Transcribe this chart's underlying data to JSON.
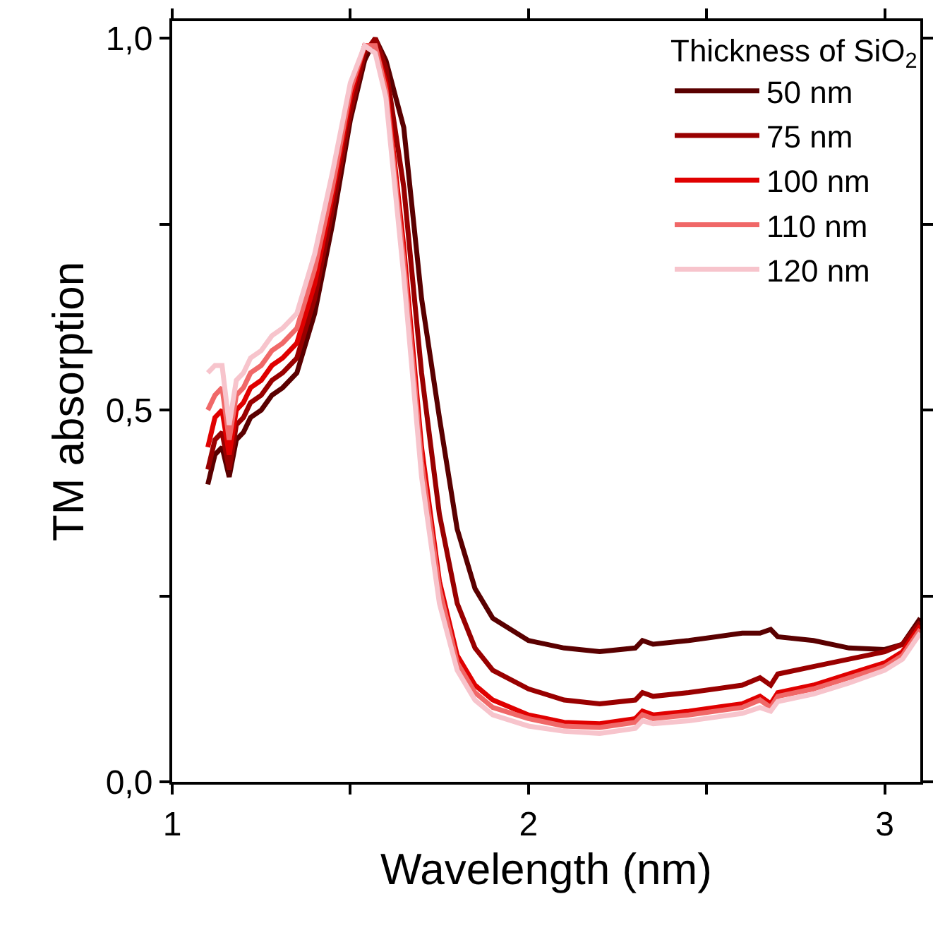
{
  "chart_data": {
    "type": "line",
    "xlabel": "Wavelength (nm)",
    "ylabel": "TM absorption",
    "legend_title": "Thickness of SiO$_{2}$",
    "xlim": [
      1,
      3.1
    ],
    "xticks": [
      1,
      {
        "value": 1.5,
        "label": null
      },
      2,
      {
        "value": 2.5,
        "label": null
      },
      3
    ],
    "ylim": [
      0,
      1.023
    ],
    "yticks": [
      {
        "value": 0,
        "label": "0,0"
      },
      {
        "value": 0.25,
        "label": null
      },
      {
        "value": 0.5,
        "label": "0,5"
      },
      {
        "value": 0.75,
        "label": null
      },
      {
        "value": 1,
        "label": "1,0"
      }
    ],
    "legend": "top right",
    "marker": "none",
    "line_style": "solid",
    "x": [
      1.1,
      1.12,
      1.14,
      1.16,
      1.18,
      1.2,
      1.22,
      1.25,
      1.28,
      1.31,
      1.35,
      1.4,
      1.45,
      1.5,
      1.54,
      1.57,
      1.6,
      1.65,
      1.7,
      1.75,
      1.8,
      1.85,
      1.9,
      2.0,
      2.1,
      2.2,
      2.3,
      2.32,
      2.35,
      2.45,
      2.6,
      2.65,
      2.68,
      2.7,
      2.8,
      2.9,
      3.0,
      3.05,
      3.1
    ],
    "series": [
      {
        "name": "50 nm",
        "color": "#5a0000",
        "values": [
          0.4,
          0.44,
          0.45,
          0.41,
          0.46,
          0.47,
          0.49,
          0.5,
          0.52,
          0.53,
          0.55,
          0.63,
          0.75,
          0.89,
          0.97,
          1.0,
          0.97,
          0.88,
          0.65,
          0.49,
          0.34,
          0.26,
          0.22,
          0.19,
          0.18,
          0.175,
          0.18,
          0.19,
          0.185,
          0.19,
          0.2,
          0.2,
          0.205,
          0.195,
          0.19,
          0.18,
          0.178,
          0.185,
          0.22
        ]
      },
      {
        "name": "75 nm",
        "color": "#990000",
        "values": [
          0.42,
          0.46,
          0.47,
          0.42,
          0.48,
          0.49,
          0.51,
          0.52,
          0.54,
          0.55,
          0.57,
          0.65,
          0.77,
          0.9,
          0.98,
          1.0,
          0.96,
          0.8,
          0.55,
          0.36,
          0.24,
          0.18,
          0.15,
          0.125,
          0.11,
          0.105,
          0.11,
          0.12,
          0.115,
          0.12,
          0.13,
          0.14,
          0.13,
          0.145,
          0.155,
          0.165,
          0.175,
          0.185,
          0.215
        ]
      },
      {
        "name": "100 nm",
        "color": "#e00000",
        "values": [
          0.45,
          0.49,
          0.5,
          0.44,
          0.5,
          0.51,
          0.53,
          0.54,
          0.56,
          0.57,
          0.59,
          0.67,
          0.79,
          0.92,
          0.99,
          0.99,
          0.94,
          0.72,
          0.45,
          0.27,
          0.17,
          0.13,
          0.11,
          0.09,
          0.08,
          0.078,
          0.085,
          0.095,
          0.09,
          0.095,
          0.105,
          0.115,
          0.105,
          0.12,
          0.13,
          0.145,
          0.16,
          0.175,
          0.21
        ]
      },
      {
        "name": "110 nm",
        "color": "#f06868",
        "values": [
          0.5,
          0.52,
          0.53,
          0.46,
          0.52,
          0.53,
          0.55,
          0.56,
          0.58,
          0.59,
          0.61,
          0.69,
          0.8,
          0.93,
          0.99,
          0.99,
          0.93,
          0.7,
          0.43,
          0.26,
          0.16,
          0.12,
          0.1,
          0.085,
          0.075,
          0.073,
          0.08,
          0.09,
          0.085,
          0.09,
          0.1,
          0.11,
          0.1,
          0.115,
          0.125,
          0.14,
          0.155,
          0.17,
          0.205
        ]
      },
      {
        "name": "120 nm",
        "color": "#f7c4cc",
        "values": [
          0.55,
          0.56,
          0.56,
          0.48,
          0.54,
          0.55,
          0.57,
          0.58,
          0.6,
          0.61,
          0.63,
          0.71,
          0.82,
          0.94,
          0.99,
          0.98,
          0.92,
          0.68,
          0.41,
          0.24,
          0.15,
          0.11,
          0.09,
          0.075,
          0.068,
          0.065,
          0.072,
          0.082,
          0.078,
          0.082,
          0.092,
          0.1,
          0.095,
          0.108,
          0.118,
          0.133,
          0.15,
          0.165,
          0.2
        ]
      }
    ]
  }
}
